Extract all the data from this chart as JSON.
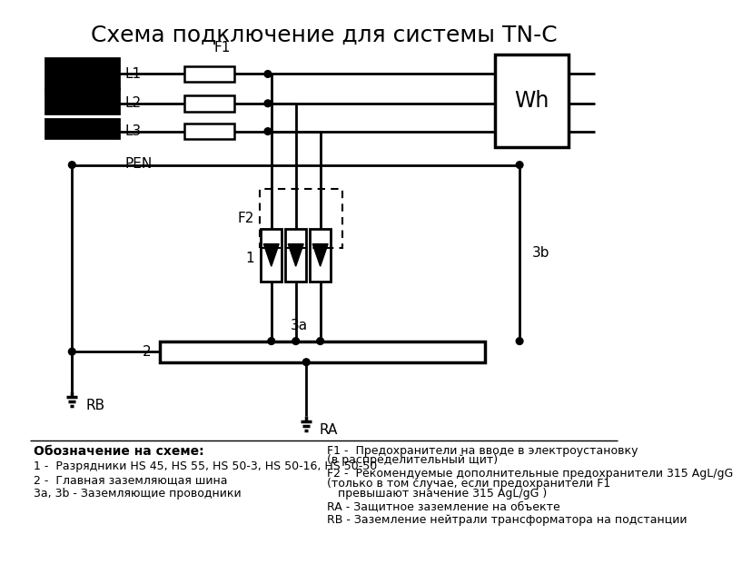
{
  "title": "Схема подключение для системы TN-C",
  "title_fontsize": 18,
  "bg_color": "#ffffff",
  "line_color": "#000000",
  "legend_items_left": [
    "1 -  Разрядники HS 45, HS 55, HS 50-3, HS 50-16, HS 50-50",
    "2 -  Главная заземляющая шина",
    "3а, 3b - Заземляющие проводники"
  ],
  "legend_items_right": [
    "F1 -  Предохранители на вводе в электроустановку\n(в распределительный щит)",
    "F2 -  Рекомендуемые дополнительные предохранители 315 AgL/gG\n(только в том случае, если предохранители F1\n   превышают значение 315 AgL/gG )",
    "RA - Защитное заземление на объекте",
    "RB - Заземление нейтрали трансформатора на подстанции"
  ]
}
